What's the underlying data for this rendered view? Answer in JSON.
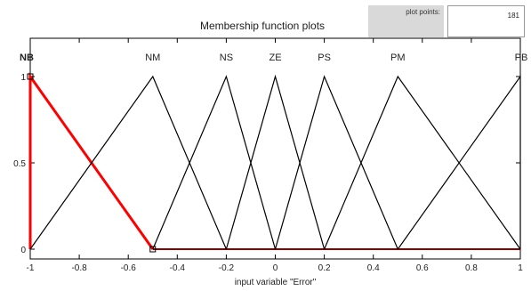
{
  "header": {
    "title": "Membership function plots",
    "plot_points_label": "plot points:",
    "plot_points_value": "181"
  },
  "chart_data": {
    "type": "line",
    "title": "",
    "xlabel": "input variable \"Error\"",
    "ylabel": "",
    "xlim": [
      -1,
      1
    ],
    "ylim": [
      0,
      1
    ],
    "x_ticks": [
      "-1",
      "-0.8",
      "-0.6",
      "-0.4",
      "-0.2",
      "0",
      "0.2",
      "0.4",
      "0.6",
      "0.8",
      "1"
    ],
    "y_ticks": [
      "0",
      "0.5",
      "1"
    ],
    "selected_series": "NB",
    "colors": {
      "selected": "#ff0000",
      "normal": "#000000",
      "baseline": "#8b0000"
    },
    "series": [
      {
        "name": "NB",
        "x": [
          -1,
          -1,
          -0.5
        ],
        "y": [
          0,
          1,
          0
        ]
      },
      {
        "name": "NM",
        "x": [
          -1,
          -0.5,
          -0.2
        ],
        "y": [
          0,
          1,
          0
        ]
      },
      {
        "name": "NS",
        "x": [
          -0.5,
          -0.2,
          0
        ],
        "y": [
          0,
          1,
          0
        ]
      },
      {
        "name": "ZE",
        "x": [
          -0.2,
          0,
          0.2
        ],
        "y": [
          0,
          1,
          0
        ]
      },
      {
        "name": "PS",
        "x": [
          0,
          0.2,
          0.5
        ],
        "y": [
          0,
          1,
          0
        ]
      },
      {
        "name": "PM",
        "x": [
          0.2,
          0.5,
          1
        ],
        "y": [
          0,
          1,
          0
        ]
      },
      {
        "name": "PB",
        "x": [
          0.5,
          1,
          1
        ],
        "y": [
          0,
          1,
          0
        ]
      }
    ]
  }
}
